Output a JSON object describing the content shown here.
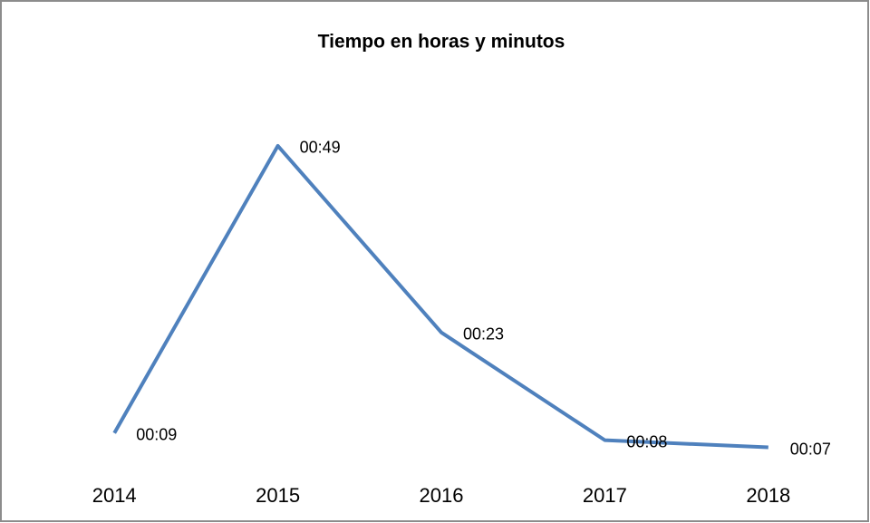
{
  "chart_data": {
    "type": "line",
    "title": "Tiempo en horas y minutos",
    "categories": [
      "2014",
      "2015",
      "2016",
      "2017",
      "2018"
    ],
    "series": [
      {
        "name": null,
        "color": "#4f81bd",
        "values": [
          9,
          49,
          23,
          8,
          7
        ],
        "value_labels": [
          "00:09",
          "00:49",
          "00:23",
          "00:08",
          "00:07"
        ]
      }
    ],
    "ylim": [
      0,
      50
    ]
  }
}
